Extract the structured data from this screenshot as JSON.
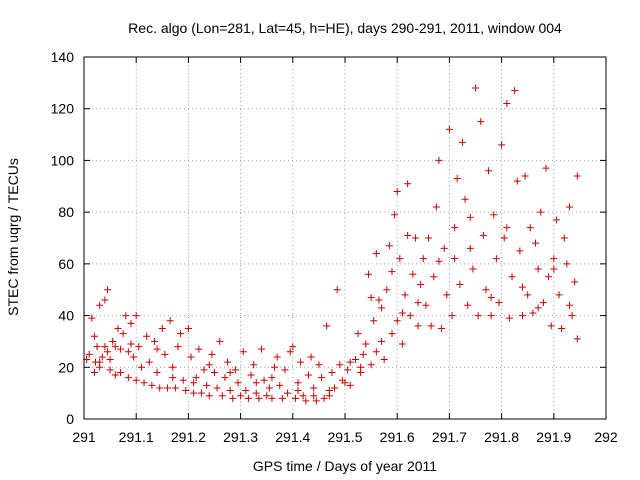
{
  "chart_data": {
    "type": "scatter",
    "title": "Rec. algo (Lon=281, Lat=45, h=HE), days 290-291, 2011, window 004",
    "xlabel": "GPS time / Days of year 2011",
    "ylabel": "STEC from uqrg / TECUs",
    "xlim": [
      291,
      292
    ],
    "ylim": [
      0,
      140
    ],
    "xticks": [
      "291",
      "291.1",
      "291.2",
      "291.3",
      "291.4",
      "291.5",
      "291.6",
      "291.7",
      "291.8",
      "291.9",
      "292"
    ],
    "xtick_values": [
      291,
      291.1,
      291.2,
      291.3,
      291.4,
      291.5,
      291.6,
      291.7,
      291.8,
      291.9,
      292
    ],
    "yticks": [
      "0",
      "20",
      "40",
      "60",
      "80",
      "100",
      "120",
      "140"
    ],
    "ytick_values": [
      0,
      20,
      40,
      60,
      80,
      100,
      120,
      140
    ],
    "grid": true,
    "marker": "+",
    "color": "#cc0000",
    "points": [
      [
        291.005,
        23
      ],
      [
        291.01,
        25
      ],
      [
        291.015,
        39
      ],
      [
        291.02,
        32
      ],
      [
        291.022,
        22
      ],
      [
        291.025,
        28
      ],
      [
        291.03,
        44
      ],
      [
        291.03,
        20
      ],
      [
        291.035,
        24
      ],
      [
        291.04,
        28
      ],
      [
        291.04,
        46
      ],
      [
        291.045,
        50
      ],
      [
        291.045,
        26
      ],
      [
        291.05,
        19
      ],
      [
        291.055,
        30
      ],
      [
        291.06,
        17
      ],
      [
        291.06,
        28
      ],
      [
        291.065,
        35
      ],
      [
        291.07,
        27
      ],
      [
        291.07,
        18
      ],
      [
        291.075,
        33
      ],
      [
        291.08,
        40
      ],
      [
        291.085,
        26
      ],
      [
        291.085,
        16
      ],
      [
        291.09,
        37
      ],
      [
        291.095,
        24
      ],
      [
        291.1,
        40
      ],
      [
        291.1,
        15
      ],
      [
        291.105,
        28
      ],
      [
        291.11,
        20
      ],
      [
        291.115,
        14
      ],
      [
        291.12,
        32
      ],
      [
        291.125,
        22
      ],
      [
        291.13,
        13
      ],
      [
        291.135,
        30
      ],
      [
        291.14,
        18
      ],
      [
        291.145,
        12
      ],
      [
        291.15,
        35
      ],
      [
        291.155,
        25
      ],
      [
        291.16,
        12
      ],
      [
        291.165,
        38
      ],
      [
        291.17,
        20
      ],
      [
        291.175,
        12
      ],
      [
        291.18,
        28
      ],
      [
        291.185,
        33
      ],
      [
        291.19,
        15
      ],
      [
        291.195,
        11
      ],
      [
        291.2,
        35
      ],
      [
        291.205,
        24
      ],
      [
        291.21,
        10
      ],
      [
        291.215,
        16
      ],
      [
        291.22,
        27
      ],
      [
        291.225,
        10
      ],
      [
        291.23,
        19
      ],
      [
        291.235,
        13
      ],
      [
        291.24,
        9
      ],
      [
        291.245,
        25
      ],
      [
        291.25,
        18
      ],
      [
        291.255,
        12
      ],
      [
        291.26,
        30
      ],
      [
        291.265,
        9
      ],
      [
        291.27,
        16
      ],
      [
        291.275,
        22
      ],
      [
        291.28,
        11
      ],
      [
        291.285,
        8
      ],
      [
        291.29,
        19
      ],
      [
        291.295,
        14
      ],
      [
        291.3,
        9
      ],
      [
        291.305,
        26
      ],
      [
        291.31,
        11
      ],
      [
        291.315,
        8
      ],
      [
        291.32,
        17
      ],
      [
        291.325,
        21
      ],
      [
        291.33,
        10
      ],
      [
        291.335,
        8
      ],
      [
        291.34,
        27
      ],
      [
        291.345,
        15
      ],
      [
        291.35,
        9
      ],
      [
        291.355,
        12
      ],
      [
        291.36,
        8
      ],
      [
        291.365,
        20
      ],
      [
        291.37,
        24
      ],
      [
        291.375,
        13
      ],
      [
        291.38,
        8
      ],
      [
        291.385,
        19
      ],
      [
        291.39,
        10
      ],
      [
        291.395,
        26
      ],
      [
        291.4,
        28
      ],
      [
        291.405,
        8
      ],
      [
        291.41,
        14
      ],
      [
        291.415,
        22
      ],
      [
        291.42,
        9
      ],
      [
        291.425,
        7
      ],
      [
        291.43,
        17
      ],
      [
        291.435,
        24
      ],
      [
        291.44,
        12
      ],
      [
        291.445,
        7
      ],
      [
        291.45,
        21
      ],
      [
        291.455,
        16
      ],
      [
        291.46,
        8
      ],
      [
        291.465,
        36
      ],
      [
        291.47,
        11
      ],
      [
        291.475,
        18
      ],
      [
        291.48,
        12
      ],
      [
        291.485,
        50
      ],
      [
        291.49,
        21
      ],
      [
        291.495,
        15
      ],
      [
        291.5,
        14
      ],
      [
        291.505,
        19
      ],
      [
        291.51,
        22
      ],
      [
        291.52,
        23
      ],
      [
        291.525,
        33
      ],
      [
        291.53,
        18
      ],
      [
        291.535,
        25
      ],
      [
        291.54,
        29
      ],
      [
        291.545,
        56
      ],
      [
        291.55,
        47
      ],
      [
        291.55,
        21
      ],
      [
        291.555,
        38
      ],
      [
        291.56,
        64
      ],
      [
        291.56,
        26
      ],
      [
        291.565,
        46
      ],
      [
        291.57,
        43
      ],
      [
        291.575,
        23
      ],
      [
        291.58,
        50
      ],
      [
        291.585,
        67
      ],
      [
        291.59,
        33
      ],
      [
        291.59,
        57
      ],
      [
        291.595,
        79
      ],
      [
        291.6,
        88
      ],
      [
        291.6,
        38
      ],
      [
        291.605,
        62
      ],
      [
        291.61,
        29
      ],
      [
        291.615,
        48
      ],
      [
        291.62,
        71
      ],
      [
        291.62,
        91
      ],
      [
        291.625,
        40
      ],
      [
        291.63,
        56
      ],
      [
        291.635,
        70
      ],
      [
        291.64,
        36
      ],
      [
        291.645,
        52
      ],
      [
        291.65,
        62
      ],
      [
        291.655,
        44
      ],
      [
        291.66,
        70
      ],
      [
        291.665,
        36
      ],
      [
        291.67,
        55
      ],
      [
        291.675,
        82
      ],
      [
        291.68,
        100
      ],
      [
        291.685,
        35
      ],
      [
        291.69,
        66
      ],
      [
        291.695,
        48
      ],
      [
        291.7,
        112
      ],
      [
        291.705,
        40
      ],
      [
        291.71,
        62
      ],
      [
        291.715,
        93
      ],
      [
        291.72,
        52
      ],
      [
        291.725,
        107
      ],
      [
        291.73,
        85
      ],
      [
        291.735,
        44
      ],
      [
        291.74,
        78
      ],
      [
        291.745,
        58
      ],
      [
        291.75,
        128
      ],
      [
        291.755,
        40
      ],
      [
        291.76,
        115
      ],
      [
        291.765,
        71
      ],
      [
        291.77,
        50
      ],
      [
        291.775,
        96
      ],
      [
        291.78,
        40
      ],
      [
        291.785,
        79
      ],
      [
        291.79,
        62
      ],
      [
        291.795,
        45
      ],
      [
        291.8,
        106
      ],
      [
        291.805,
        70
      ],
      [
        291.81,
        122
      ],
      [
        291.815,
        39
      ],
      [
        291.82,
        55
      ],
      [
        291.825,
        127
      ],
      [
        291.83,
        92
      ],
      [
        291.835,
        65
      ],
      [
        291.84,
        40
      ],
      [
        291.845,
        94
      ],
      [
        291.85,
        48
      ],
      [
        291.855,
        74
      ],
      [
        291.86,
        41
      ],
      [
        291.865,
        68
      ],
      [
        291.87,
        58
      ],
      [
        291.875,
        80
      ],
      [
        291.88,
        45
      ],
      [
        291.885,
        97
      ],
      [
        291.89,
        55
      ],
      [
        291.895,
        36
      ],
      [
        291.9,
        62
      ],
      [
        291.905,
        77
      ],
      [
        291.91,
        48
      ],
      [
        291.915,
        35
      ],
      [
        291.92,
        70
      ],
      [
        291.925,
        60
      ],
      [
        291.93,
        82
      ],
      [
        291.935,
        40
      ],
      [
        291.94,
        53
      ],
      [
        291.945,
        31
      ],
      [
        291.945,
        94
      ],
      [
        291.02,
        18
      ],
      [
        291.03,
        22
      ],
      [
        291.05,
        23
      ],
      [
        291.09,
        29
      ],
      [
        291.14,
        27
      ],
      [
        291.17,
        16
      ],
      [
        291.21,
        14
      ],
      [
        291.24,
        21
      ],
      [
        291.28,
        18
      ],
      [
        291.33,
        14
      ],
      [
        291.36,
        16
      ],
      [
        291.41,
        11
      ],
      [
        291.44,
        9
      ],
      [
        291.47,
        9
      ],
      [
        291.51,
        13
      ],
      [
        291.53,
        20
      ],
      [
        291.57,
        30
      ],
      [
        291.61,
        41
      ],
      [
        291.64,
        45
      ],
      [
        291.68,
        61
      ],
      [
        291.71,
        74
      ],
      [
        291.74,
        66
      ],
      [
        291.78,
        47
      ],
      [
        291.81,
        74
      ],
      [
        291.84,
        51
      ],
      [
        291.87,
        43
      ],
      [
        291.9,
        58
      ],
      [
        291.93,
        44
      ]
    ]
  }
}
